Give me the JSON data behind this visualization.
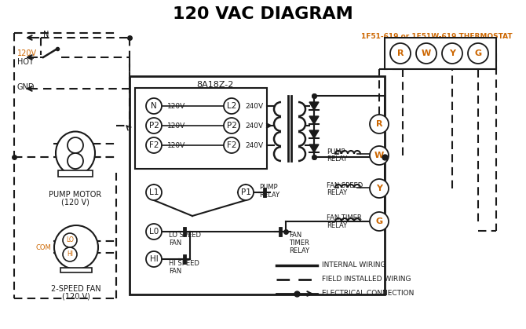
{
  "title": "120 VAC DIAGRAM",
  "title_color": "#000000",
  "title_fontsize": 16,
  "background_color": "#ffffff",
  "thermostat_label": "1F51-619 or 1F51W-619 THERMOSTAT",
  "thermostat_color": "#cc6600",
  "control_box_label": "8A18Z-2",
  "pump_motor_label": "PUMP MOTOR",
  "pump_motor_label2": "(120 V)",
  "fan_label": "2-SPEED FAN",
  "fan_label2": "(120 V)",
  "orange_color": "#cc6600",
  "black_color": "#000000",
  "line_color": "#1a1a1a",
  "legend_internal": "INTERNAL WIRING",
  "legend_field": "FIELD INSTALLED WIRING",
  "legend_elec": "ELECTRICAL CONNECTION"
}
